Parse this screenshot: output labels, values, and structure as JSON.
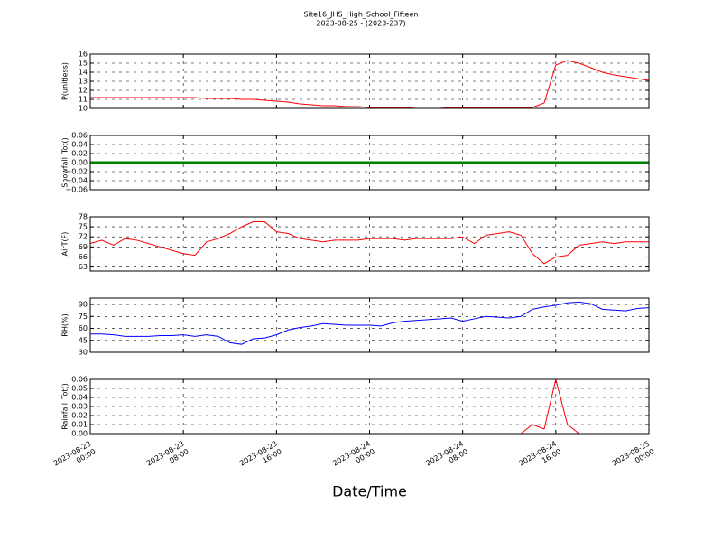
{
  "chart_data": [
    {
      "type": "line",
      "title": "Site16_JHS_High_School_Fifteen",
      "subtitle": "2023-08-25 - (2023-237)",
      "ylabel": "P(unitless)",
      "color": "#ff0000",
      "grid": true,
      "x": [
        "2023-08-23 00:00",
        "2023-08-23 01:00",
        "2023-08-23 02:00",
        "2023-08-23 03:00",
        "2023-08-23 04:00",
        "2023-08-23 05:00",
        "2023-08-23 06:00",
        "2023-08-23 07:00",
        "2023-08-23 08:00",
        "2023-08-23 09:00",
        "2023-08-23 10:00",
        "2023-08-23 11:00",
        "2023-08-23 12:00",
        "2023-08-23 13:00",
        "2023-08-23 14:00",
        "2023-08-23 15:00",
        "2023-08-23 16:00",
        "2023-08-23 17:00",
        "2023-08-23 18:00",
        "2023-08-23 19:00",
        "2023-08-23 20:00",
        "2023-08-23 21:00",
        "2023-08-23 22:00",
        "2023-08-23 23:00",
        "2023-08-24 00:00",
        "2023-08-24 01:00",
        "2023-08-24 02:00",
        "2023-08-24 03:00",
        "2023-08-24 04:00",
        "2023-08-24 05:00",
        "2023-08-24 06:00",
        "2023-08-24 07:00",
        "2023-08-24 08:00",
        "2023-08-24 09:00",
        "2023-08-24 10:00",
        "2023-08-24 11:00",
        "2023-08-24 12:00",
        "2023-08-24 13:00",
        "2023-08-24 14:00",
        "2023-08-24 15:00",
        "2023-08-24 16:00",
        "2023-08-24 17:00",
        "2023-08-24 18:00",
        "2023-08-24 19:00",
        "2023-08-24 20:00",
        "2023-08-24 21:00",
        "2023-08-24 22:00",
        "2023-08-24 23:00",
        "2023-08-25 00:00"
      ],
      "values": [
        11.2,
        11.2,
        11.2,
        11.2,
        11.2,
        11.2,
        11.2,
        11.2,
        11.2,
        11.2,
        11.1,
        11.1,
        11.1,
        11.0,
        11.0,
        10.9,
        10.8,
        10.7,
        10.5,
        10.4,
        10.3,
        10.3,
        10.2,
        10.2,
        10.1,
        10.1,
        10.1,
        10.1,
        10.0,
        10.0,
        10.0,
        10.1,
        10.1,
        10.1,
        10.1,
        10.1,
        10.1,
        10.1,
        10.1,
        10.6,
        14.8,
        15.3,
        15.0,
        14.5,
        14.0,
        13.7,
        13.5,
        13.3,
        13.1
      ],
      "xlim": [
        "2023-08-23 00:00",
        "2023-08-25 00:00"
      ],
      "xticks": [
        "2023-08-23 00:00",
        "2023-08-23 08:00",
        "2023-08-23 16:00",
        "2023-08-24 00:00",
        "2023-08-24 08:00",
        "2023-08-24 16:00",
        "2023-08-25 00:00"
      ],
      "ylim": [
        10,
        16
      ],
      "yticks": [
        10,
        11,
        12,
        13,
        14,
        15,
        16
      ]
    },
    {
      "type": "line",
      "ylabel": "Snowfall_Tot()",
      "color": "#008000",
      "grid": true,
      "x": [
        "2023-08-23 00:00",
        "2023-08-23 01:00",
        "2023-08-23 02:00",
        "2023-08-23 03:00",
        "2023-08-23 04:00",
        "2023-08-23 05:00",
        "2023-08-23 06:00",
        "2023-08-23 07:00",
        "2023-08-23 08:00",
        "2023-08-23 09:00",
        "2023-08-23 10:00",
        "2023-08-23 11:00",
        "2023-08-23 12:00",
        "2023-08-23 13:00",
        "2023-08-23 14:00",
        "2023-08-23 15:00",
        "2023-08-23 16:00",
        "2023-08-23 17:00",
        "2023-08-23 18:00",
        "2023-08-23 19:00",
        "2023-08-23 20:00",
        "2023-08-23 21:00",
        "2023-08-23 22:00",
        "2023-08-23 23:00",
        "2023-08-24 00:00",
        "2023-08-24 01:00",
        "2023-08-24 02:00",
        "2023-08-24 03:00",
        "2023-08-24 04:00",
        "2023-08-24 05:00",
        "2023-08-24 06:00",
        "2023-08-24 07:00",
        "2023-08-24 08:00",
        "2023-08-24 09:00",
        "2023-08-24 10:00",
        "2023-08-24 11:00",
        "2023-08-24 12:00",
        "2023-08-24 13:00",
        "2023-08-24 14:00",
        "2023-08-24 15:00",
        "2023-08-24 16:00",
        "2023-08-24 17:00",
        "2023-08-24 18:00",
        "2023-08-24 19:00",
        "2023-08-24 20:00",
        "2023-08-24 21:00",
        "2023-08-24 22:00",
        "2023-08-24 23:00",
        "2023-08-25 00:00"
      ],
      "values": [
        0,
        0,
        0,
        0,
        0,
        0,
        0,
        0,
        0,
        0,
        0,
        0,
        0,
        0,
        0,
        0,
        0,
        0,
        0,
        0,
        0,
        0,
        0,
        0,
        0,
        0,
        0,
        0,
        0,
        0,
        0,
        0,
        0,
        0,
        0,
        0,
        0,
        0,
        0,
        0,
        0,
        0,
        0,
        0,
        0,
        0,
        0,
        0,
        0
      ],
      "xlim": [
        "2023-08-23 00:00",
        "2023-08-25 00:00"
      ],
      "xticks": [
        "2023-08-23 00:00",
        "2023-08-23 08:00",
        "2023-08-23 16:00",
        "2023-08-24 00:00",
        "2023-08-24 08:00",
        "2023-08-24 16:00",
        "2023-08-25 00:00"
      ],
      "ylim": [
        -0.06,
        0.06
      ],
      "yticks": [
        {
          "value": -0.06,
          "label": "−0.06"
        },
        {
          "value": -0.04,
          "label": "−0.04"
        },
        {
          "value": -0.02,
          "label": "−0.02"
        },
        {
          "value": 0,
          "label": "0.00"
        },
        0.02,
        0.04,
        0.06
      ]
    },
    {
      "type": "line",
      "ylabel": "AirT(F)",
      "color": "#ff0000",
      "grid": true,
      "x": [
        "2023-08-23 00:00",
        "2023-08-23 01:00",
        "2023-08-23 02:00",
        "2023-08-23 03:00",
        "2023-08-23 04:00",
        "2023-08-23 05:00",
        "2023-08-23 06:00",
        "2023-08-23 07:00",
        "2023-08-23 08:00",
        "2023-08-23 09:00",
        "2023-08-23 10:00",
        "2023-08-23 11:00",
        "2023-08-23 12:00",
        "2023-08-23 13:00",
        "2023-08-23 14:00",
        "2023-08-23 15:00",
        "2023-08-23 16:00",
        "2023-08-23 17:00",
        "2023-08-23 18:00",
        "2023-08-23 19:00",
        "2023-08-23 20:00",
        "2023-08-23 21:00",
        "2023-08-23 22:00",
        "2023-08-23 23:00",
        "2023-08-24 00:00",
        "2023-08-24 01:00",
        "2023-08-24 02:00",
        "2023-08-24 03:00",
        "2023-08-24 04:00",
        "2023-08-24 05:00",
        "2023-08-24 06:00",
        "2023-08-24 07:00",
        "2023-08-24 08:00",
        "2023-08-24 09:00",
        "2023-08-24 10:00",
        "2023-08-24 11:00",
        "2023-08-24 12:00",
        "2023-08-24 13:00",
        "2023-08-24 14:00",
        "2023-08-24 15:00",
        "2023-08-24 16:00",
        "2023-08-24 17:00",
        "2023-08-24 18:00",
        "2023-08-24 19:00",
        "2023-08-24 20:00",
        "2023-08-24 21:00",
        "2023-08-24 22:00",
        "2023-08-24 23:00",
        "2023-08-25 00:00"
      ],
      "values": [
        70,
        71,
        69.5,
        71.5,
        71,
        70,
        69,
        68,
        67,
        66.5,
        70.5,
        71.5,
        73,
        75,
        76.5,
        76.5,
        73.5,
        73,
        71.5,
        71,
        70.5,
        71,
        71,
        71,
        71.5,
        71.5,
        71.5,
        71,
        71.5,
        71.5,
        71.5,
        71.5,
        72,
        70,
        72.5,
        73,
        73.5,
        72.5,
        67,
        64,
        66,
        66.5,
        69.5,
        70,
        70.5,
        70,
        70.5,
        70.5,
        70.5
      ],
      "xlim": [
        "2023-08-23 00:00",
        "2023-08-25 00:00"
      ],
      "xticks": [
        "2023-08-23 00:00",
        "2023-08-23 08:00",
        "2023-08-23 16:00",
        "2023-08-24 00:00",
        "2023-08-24 08:00",
        "2023-08-24 16:00",
        "2023-08-25 00:00"
      ],
      "ylim": [
        61.8,
        78
      ],
      "yticks": [
        63,
        66,
        69,
        72,
        75,
        78
      ]
    },
    {
      "type": "line",
      "ylabel": "RH(%)",
      "color": "#0000ff",
      "grid": true,
      "x": [
        "2023-08-23 00:00",
        "2023-08-23 01:00",
        "2023-08-23 02:00",
        "2023-08-23 03:00",
        "2023-08-23 04:00",
        "2023-08-23 05:00",
        "2023-08-23 06:00",
        "2023-08-23 07:00",
        "2023-08-23 08:00",
        "2023-08-23 09:00",
        "2023-08-23 10:00",
        "2023-08-23 11:00",
        "2023-08-23 12:00",
        "2023-08-23 13:00",
        "2023-08-23 14:00",
        "2023-08-23 15:00",
        "2023-08-23 16:00",
        "2023-08-23 17:00",
        "2023-08-23 18:00",
        "2023-08-23 19:00",
        "2023-08-23 20:00",
        "2023-08-23 21:00",
        "2023-08-23 22:00",
        "2023-08-23 23:00",
        "2023-08-24 00:00",
        "2023-08-24 01:00",
        "2023-08-24 02:00",
        "2023-08-24 03:00",
        "2023-08-24 04:00",
        "2023-08-24 05:00",
        "2023-08-24 06:00",
        "2023-08-24 07:00",
        "2023-08-24 08:00",
        "2023-08-24 09:00",
        "2023-08-24 10:00",
        "2023-08-24 11:00",
        "2023-08-24 12:00",
        "2023-08-24 13:00",
        "2023-08-24 14:00",
        "2023-08-24 15:00",
        "2023-08-24 16:00",
        "2023-08-24 17:00",
        "2023-08-24 18:00",
        "2023-08-24 19:00",
        "2023-08-24 20:00",
        "2023-08-24 21:00",
        "2023-08-24 22:00",
        "2023-08-24 23:00",
        "2023-08-25 00:00"
      ],
      "values": [
        53,
        53,
        52,
        50,
        50,
        50,
        51,
        51,
        52,
        50,
        52,
        50,
        42,
        40,
        47,
        48,
        52,
        58,
        61,
        63,
        66,
        65,
        64,
        64,
        64,
        63,
        67,
        69,
        70,
        71,
        72,
        73,
        69,
        72,
        75,
        74,
        73,
        75,
        84,
        87,
        89,
        92,
        93,
        91,
        84,
        83,
        82,
        85,
        86
      ],
      "xlim": [
        "2023-08-23 00:00",
        "2023-08-25 00:00"
      ],
      "xticks": [
        "2023-08-23 00:00",
        "2023-08-23 08:00",
        "2023-08-23 16:00",
        "2023-08-24 00:00",
        "2023-08-24 08:00",
        "2023-08-24 16:00",
        "2023-08-25 00:00"
      ],
      "ylim": [
        30,
        98
      ],
      "yticks": [
        30,
        45,
        60,
        75,
        90
      ]
    },
    {
      "type": "line",
      "ylabel": "Rainfall_Tot()",
      "xlabel": "Date/Time",
      "color": "#ff0000",
      "grid": true,
      "x": [
        "2023-08-23 00:00",
        "2023-08-23 01:00",
        "2023-08-23 02:00",
        "2023-08-23 03:00",
        "2023-08-23 04:00",
        "2023-08-23 05:00",
        "2023-08-23 06:00",
        "2023-08-23 07:00",
        "2023-08-23 08:00",
        "2023-08-23 09:00",
        "2023-08-23 10:00",
        "2023-08-23 11:00",
        "2023-08-23 12:00",
        "2023-08-23 13:00",
        "2023-08-23 14:00",
        "2023-08-23 15:00",
        "2023-08-23 16:00",
        "2023-08-23 17:00",
        "2023-08-23 18:00",
        "2023-08-23 19:00",
        "2023-08-23 20:00",
        "2023-08-23 21:00",
        "2023-08-23 22:00",
        "2023-08-23 23:00",
        "2023-08-24 00:00",
        "2023-08-24 01:00",
        "2023-08-24 02:00",
        "2023-08-24 03:00",
        "2023-08-24 04:00",
        "2023-08-24 05:00",
        "2023-08-24 06:00",
        "2023-08-24 07:00",
        "2023-08-24 08:00",
        "2023-08-24 09:00",
        "2023-08-24 10:00",
        "2023-08-24 11:00",
        "2023-08-24 12:00",
        "2023-08-24 13:00",
        "2023-08-24 14:00",
        "2023-08-24 15:00",
        "2023-08-24 16:00",
        "2023-08-24 17:00",
        "2023-08-24 18:00",
        "2023-08-24 19:00",
        "2023-08-24 20:00",
        "2023-08-24 21:00",
        "2023-08-24 22:00",
        "2023-08-24 23:00",
        "2023-08-25 00:00"
      ],
      "values": [
        0,
        0,
        0,
        0,
        0,
        0,
        0,
        0,
        0,
        0,
        0,
        0,
        0,
        0,
        0,
        0,
        0,
        0,
        0,
        0,
        0,
        0,
        0,
        0,
        0,
        0,
        0,
        0,
        0,
        0,
        0,
        0,
        0,
        0,
        0,
        0,
        0,
        0,
        0.01,
        0.005,
        0.06,
        0.01,
        0,
        0,
        0,
        0,
        0,
        0,
        0
      ],
      "xlim": [
        "2023-08-23 00:00",
        "2023-08-25 00:00"
      ],
      "xticks": [
        "2023-08-23 00:00",
        "2023-08-23 08:00",
        "2023-08-23 16:00",
        "2023-08-24 00:00",
        "2023-08-24 08:00",
        "2023-08-24 16:00",
        "2023-08-25 00:00"
      ],
      "ylim": [
        0,
        0.06
      ],
      "yticks": [
        {
          "value": 0,
          "label": "0.00"
        },
        0.01,
        0.02,
        0.03,
        0.04,
        0.05,
        0.06
      ]
    }
  ]
}
